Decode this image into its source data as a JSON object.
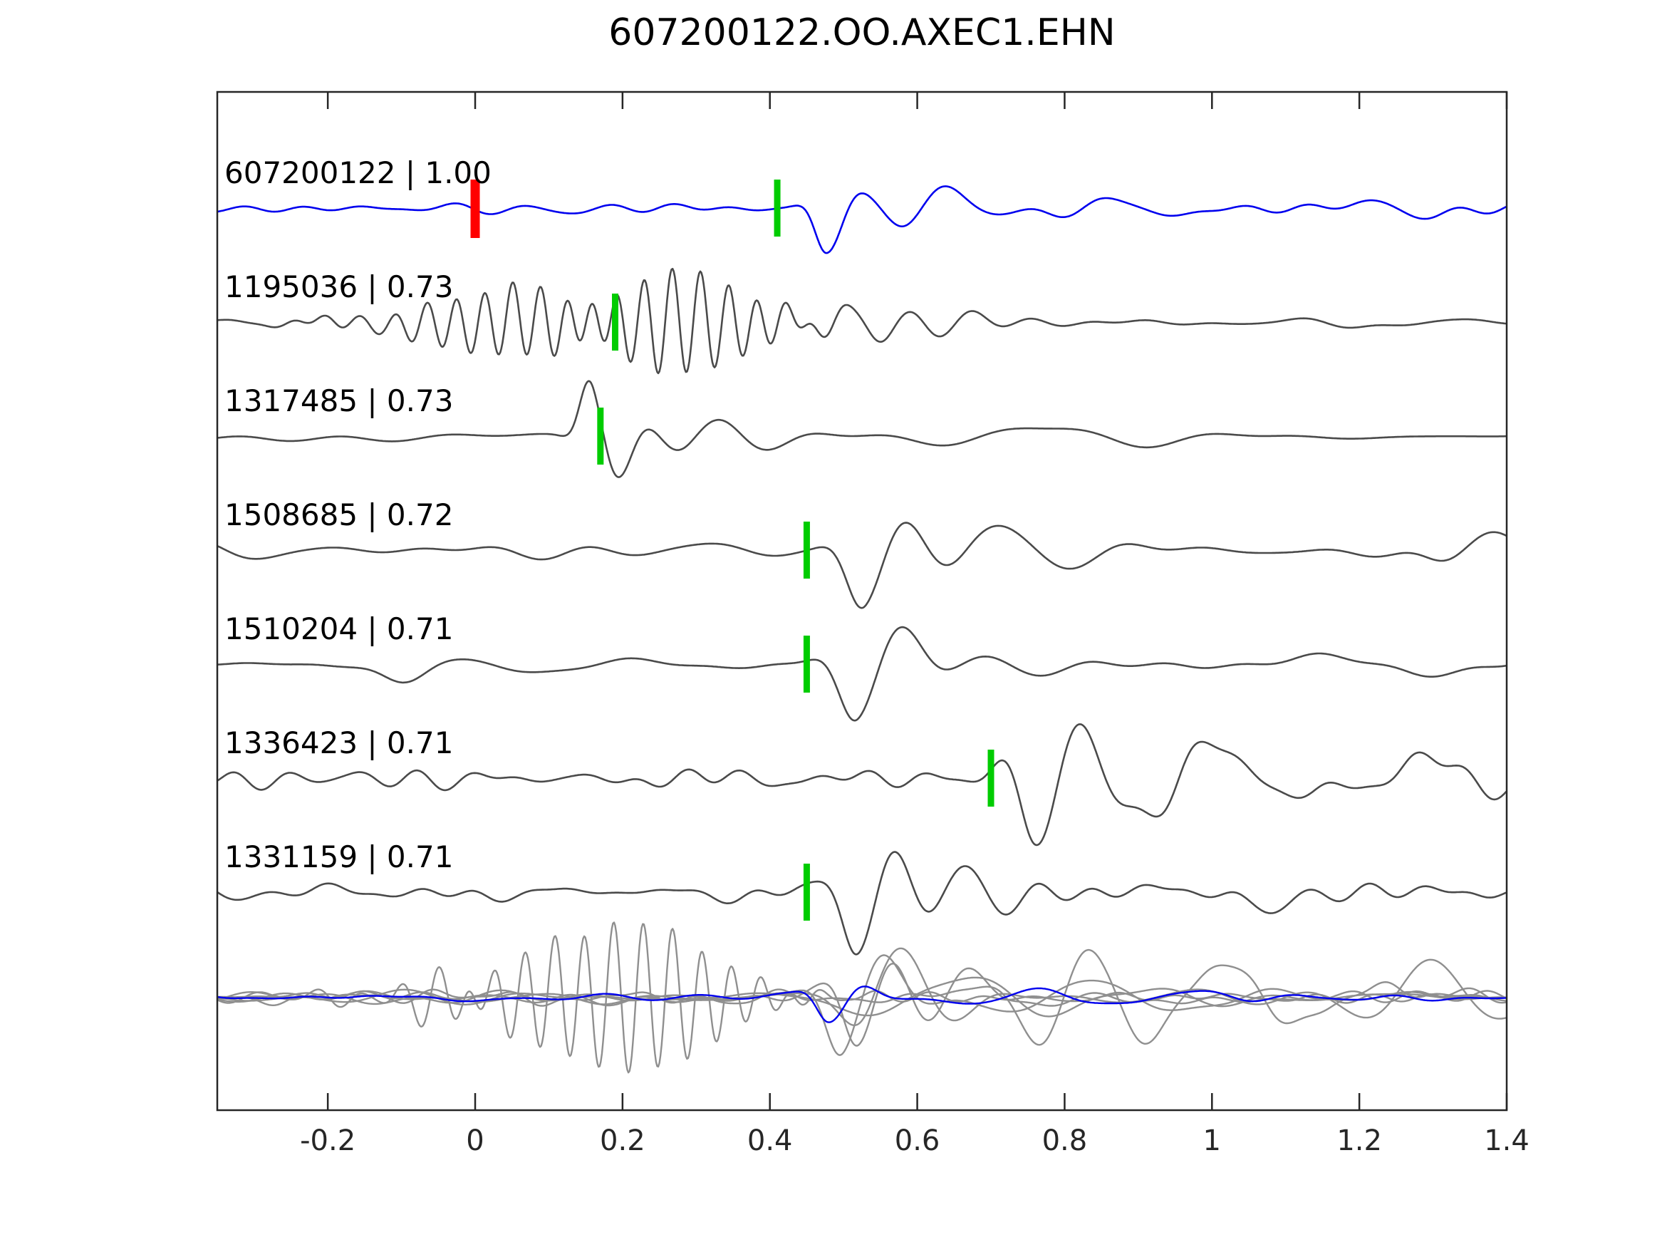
{
  "chart_data": {
    "type": "line",
    "title": "607200122.OO.AXEC1.EHN",
    "xlabel": "",
    "ylabel": "",
    "x_range": [
      -0.35,
      1.4
    ],
    "x_ticks": [
      -0.2,
      0,
      0.2,
      0.4,
      0.6,
      0.8,
      1,
      1.2,
      1.4
    ],
    "x_tick_labels": [
      "-0.2",
      "0",
      "0.2",
      "0.4",
      "0.6",
      "0.8",
      "1",
      "1.2",
      "1.4"
    ],
    "grid": false,
    "legend": "none",
    "colors": {
      "template": "#0000ee",
      "detection": "#4a4a4a",
      "overlay": "#8f8f8f",
      "pick": "#00cc00",
      "origin_mark": "#ff0000",
      "axis": "#262626",
      "text": "#000000"
    },
    "traces": [
      {
        "id": "607200122",
        "label": "607200122 | 1.00",
        "correlation": "1.00",
        "color": "template",
        "pick_time": 0.41,
        "origin_time": 0.0,
        "seed": 11,
        "noise": 7,
        "noise_fmax": 15,
        "events": [
          {
            "t0": 0.477,
            "f": 8.5,
            "a": 60,
            "r": 0.028,
            "d": 0.05,
            "ph": -1.5
          },
          {
            "t0": 0.6,
            "f": 6.0,
            "a": 28,
            "r": 0.05,
            "d": 0.1,
            "ph": 0.0
          },
          {
            "t0": 0.85,
            "f": 5.0,
            "a": 13,
            "r": 0.15,
            "d": 0.3,
            "ph": 1.0
          },
          {
            "t0": 1.2,
            "f": 4.5,
            "a": 12,
            "r": 0.2,
            "d": 0.2,
            "ph": 2.0
          }
        ]
      },
      {
        "id": "1195036",
        "label": "1195036 | 0.73",
        "correlation": "0.73",
        "color": "detection",
        "pick_time": 0.19,
        "seed": 12,
        "noise": 6,
        "noise_fmax": 12,
        "events": [
          {
            "t0": -0.12,
            "f": 22,
            "a": 14,
            "r": 0.1,
            "d": 0.1,
            "ph": 0.5
          },
          {
            "t0": 0.08,
            "f": 26,
            "a": 55,
            "r": 0.14,
            "d": 0.1,
            "ph": 0.0
          },
          {
            "t0": 0.27,
            "f": 26,
            "a": 75,
            "r": 0.12,
            "d": 0.13,
            "ph": 2.0
          },
          {
            "t0": 0.5,
            "f": 12,
            "a": 25,
            "r": 0.08,
            "d": 0.2,
            "ph": 1.0
          }
        ]
      },
      {
        "id": "1317485",
        "label": "1317485 | 0.73",
        "correlation": "0.73",
        "color": "detection",
        "pick_time": 0.17,
        "seed": 13,
        "noise": 8,
        "noise_fmax": 10,
        "events": [
          {
            "t0": 0.16,
            "f": 10,
            "a": 85,
            "r": 0.025,
            "d": 0.06,
            "ph": 2.2
          },
          {
            "t0": 0.3,
            "f": 7,
            "a": 30,
            "r": 0.06,
            "d": 0.12,
            "ph": 0.0
          },
          {
            "t0": 0.75,
            "f": 3.5,
            "a": 14,
            "r": 0.2,
            "d": 0.3,
            "ph": 1.0
          }
        ]
      },
      {
        "id": "1508685",
        "label": "1508685 | 0.72",
        "correlation": "0.72",
        "color": "detection",
        "pick_time": 0.45,
        "seed": 14,
        "noise": 11,
        "noise_fmax": 9,
        "events": [
          {
            "t0": 0.53,
            "f": 6.5,
            "a": 85,
            "r": 0.04,
            "d": 0.09,
            "ph": -1.2
          },
          {
            "t0": 0.68,
            "f": 5.0,
            "a": 30,
            "r": 0.08,
            "d": 0.15,
            "ph": 0.5
          },
          {
            "t0": 1.34,
            "f": 4.5,
            "a": 32,
            "r": 0.06,
            "d": 0.08,
            "ph": 0.0
          }
        ]
      },
      {
        "id": "1510204",
        "label": "1510204 | 0.71",
        "correlation": "0.71",
        "color": "detection",
        "pick_time": 0.45,
        "seed": 15,
        "noise": 12,
        "noise_fmax": 9,
        "events": [
          {
            "t0": -0.1,
            "f": 4.0,
            "a": 28,
            "r": 0.05,
            "d": 0.05,
            "ph": 4.4
          },
          {
            "t0": 0.52,
            "f": 6.5,
            "a": 88,
            "r": 0.045,
            "d": 0.1,
            "ph": -1.3
          },
          {
            "t0": 0.66,
            "f": 5.0,
            "a": 30,
            "r": 0.08,
            "d": 0.12,
            "ph": 0.8
          }
        ]
      },
      {
        "id": "1336423",
        "label": "1336423 | 0.71",
        "correlation": "0.71",
        "color": "detection",
        "pick_time": 0.7,
        "seed": 16,
        "noise": 15,
        "noise_fmax": 16,
        "events": [
          {
            "t0": 0.76,
            "f": 7.5,
            "a": 85,
            "r": 0.05,
            "d": 0.12,
            "ph": -1.6
          },
          {
            "t0": 0.97,
            "f": 5.0,
            "a": 55,
            "r": 0.1,
            "d": 0.15,
            "ph": 0.4
          },
          {
            "t0": 1.28,
            "f": 5.0,
            "a": 38,
            "r": 0.1,
            "d": 0.12,
            "ph": 1.0
          }
        ]
      },
      {
        "id": "1331159",
        "label": "1331159 | 0.71",
        "correlation": "0.71",
        "color": "detection",
        "pick_time": 0.45,
        "seed": 17,
        "noise": 13,
        "noise_fmax": 18,
        "events": [
          {
            "t0": 0.52,
            "f": 8.5,
            "a": 88,
            "r": 0.04,
            "d": 0.08,
            "ph": -1.4
          },
          {
            "t0": 0.64,
            "f": 7.0,
            "a": 45,
            "r": 0.06,
            "d": 0.1,
            "ph": 0.6
          },
          {
            "t0": 1.05,
            "f": 4.0,
            "a": 30,
            "r": 0.04,
            "d": 0.06,
            "ph": 3.6
          }
        ]
      }
    ],
    "overlay_traces": [
      {
        "color": "overlay",
        "seed": 31,
        "noise": 8,
        "noise_fmax": 16,
        "events": [
          {
            "t0": 0.22,
            "f": 25,
            "a": 105,
            "r": 0.2,
            "d": 0.14,
            "ph": 0.3
          },
          {
            "t0": -0.05,
            "f": 18,
            "a": 25,
            "r": 0.12,
            "d": 0.12,
            "ph": 1.1
          }
        ]
      },
      {
        "color": "overlay",
        "seed": 32,
        "noise": 9,
        "noise_fmax": 12,
        "events": [
          {
            "t0": 0.5,
            "f": 7.5,
            "a": 85,
            "r": 0.04,
            "d": 0.1,
            "ph": -1.2
          },
          {
            "t0": 0.8,
            "f": 4.0,
            "a": 30,
            "r": 0.15,
            "d": 0.25,
            "ph": 0.6
          }
        ]
      },
      {
        "color": "overlay",
        "seed": 33,
        "noise": 10,
        "noise_fmax": 10,
        "events": [
          {
            "t0": 0.55,
            "f": 6.0,
            "a": 70,
            "r": 0.05,
            "d": 0.12,
            "ph": 0.4
          },
          {
            "t0": 1.3,
            "f": 5.0,
            "a": 55,
            "r": 0.1,
            "d": 0.12,
            "ph": 1.5
          }
        ]
      },
      {
        "color": "overlay",
        "seed": 34,
        "noise": 12,
        "noise_fmax": 16,
        "events": [
          {
            "t0": 0.78,
            "f": 7.0,
            "a": 75,
            "r": 0.06,
            "d": 0.15,
            "ph": -0.8
          },
          {
            "t0": 1.0,
            "f": 5.0,
            "a": 45,
            "r": 0.12,
            "d": 0.2,
            "ph": 0.9
          }
        ]
      },
      {
        "color": "overlay",
        "seed": 35,
        "noise": 10,
        "noise_fmax": 14,
        "events": [
          {
            "t0": 0.52,
            "f": 9.0,
            "a": 70,
            "r": 0.04,
            "d": 0.09,
            "ph": -1.5
          },
          {
            "t0": 0.64,
            "f": 6.0,
            "a": 35,
            "r": 0.07,
            "d": 0.12,
            "ph": 0.3
          }
        ]
      },
      {
        "color": "overlay",
        "seed": 36,
        "noise": 8,
        "noise_fmax": 8,
        "events": [
          {
            "t0": 0.6,
            "f": 4.0,
            "a": 28,
            "r": 0.15,
            "d": 0.3,
            "ph": 0.0
          }
        ]
      },
      {
        "color": "template",
        "seed": 37,
        "noise": 5,
        "noise_fmax": 12,
        "events": [
          {
            "t0": 0.48,
            "f": 9.0,
            "a": 32,
            "r": 0.03,
            "d": 0.06,
            "ph": -1.5
          },
          {
            "t0": 0.75,
            "f": 5.0,
            "a": 12,
            "r": 0.15,
            "d": 0.25,
            "ph": 1.0
          }
        ]
      }
    ]
  }
}
